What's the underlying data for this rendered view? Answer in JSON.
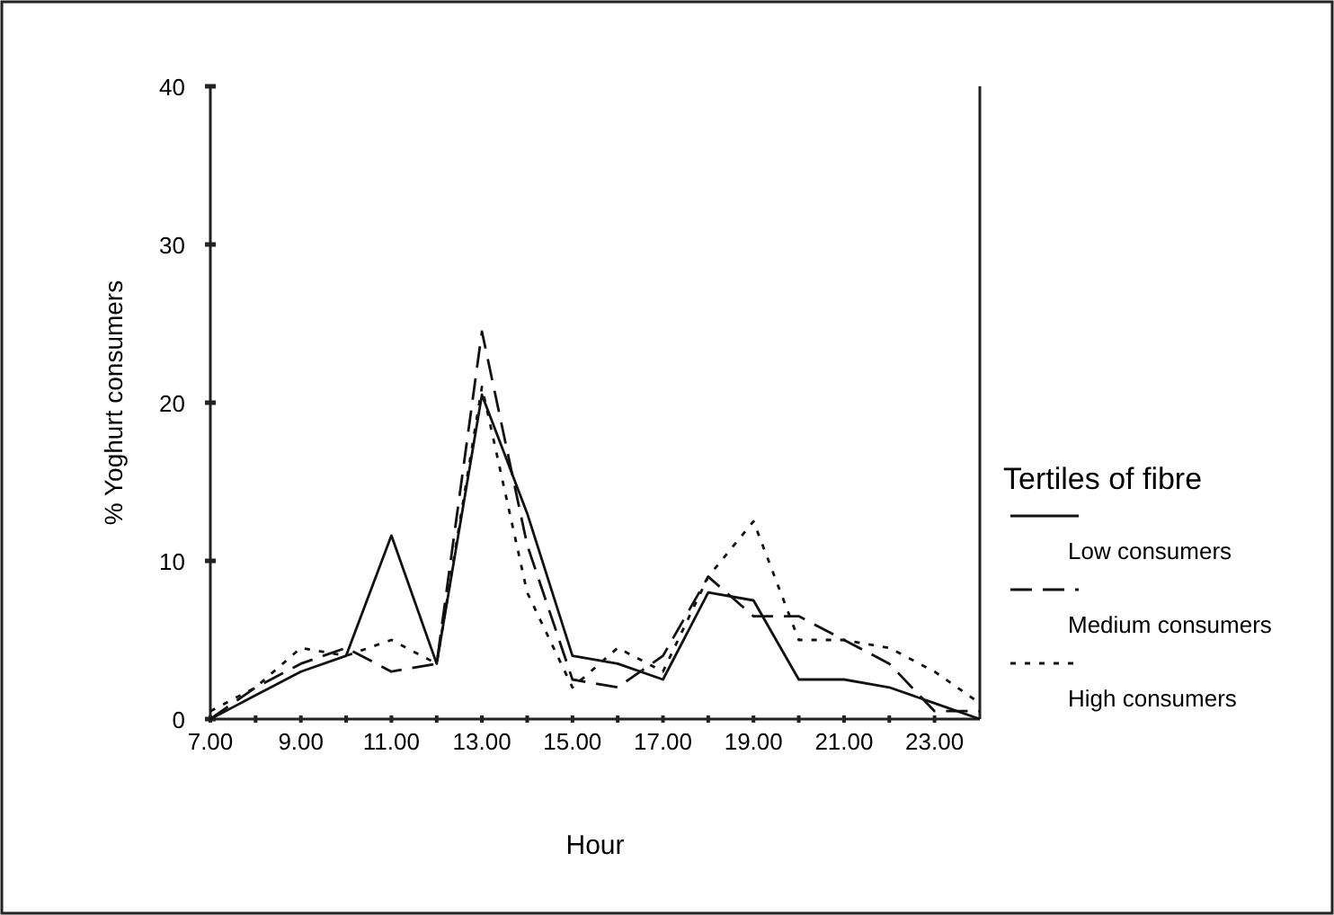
{
  "chart_data": {
    "type": "line",
    "xlabel": "Hour",
    "ylabel": "% Yoghurt consumers",
    "legend_title": "Tertiles of fibre",
    "legend": "right",
    "grid": false,
    "xlim": [
      7,
      24
    ],
    "ylim": [
      0,
      40
    ],
    "yticks": [
      0,
      10,
      20,
      30,
      40
    ],
    "xticks": [
      {
        "value": 7,
        "label": "7.00"
      },
      {
        "value": 8,
        "label": null
      },
      {
        "value": 9,
        "label": "9.00"
      },
      {
        "value": 10,
        "label": null
      },
      {
        "value": 11,
        "label": "11.00"
      },
      {
        "value": 12,
        "label": null
      },
      {
        "value": 13,
        "label": "13.00"
      },
      {
        "value": 14,
        "label": null
      },
      {
        "value": 15,
        "label": "15.00"
      },
      {
        "value": 16,
        "label": null
      },
      {
        "value": 17,
        "label": "17.00"
      },
      {
        "value": 18,
        "label": null
      },
      {
        "value": 19,
        "label": "19.00"
      },
      {
        "value": 20,
        "label": null
      },
      {
        "value": 21,
        "label": "21.00"
      },
      {
        "value": 22,
        "label": null
      },
      {
        "value": 23,
        "label": "23.00"
      }
    ],
    "x": [
      7,
      8,
      9,
      10,
      11,
      12,
      13,
      14,
      15,
      16,
      17,
      18,
      19,
      20,
      21,
      22,
      23,
      24
    ],
    "series": [
      {
        "name": "Low consumers",
        "color": "#111111",
        "line_style": "solid",
        "values": [
          0,
          1.5,
          3,
          4,
          11.6,
          3.5,
          20.5,
          13,
          4,
          3.5,
          2.5,
          8,
          7.5,
          2.5,
          2.5,
          2,
          1,
          0
        ]
      },
      {
        "name": "Medium consumers",
        "color": "#111111",
        "line_style": "dashed",
        "values": [
          0,
          2,
          3.5,
          4.5,
          3,
          3.5,
          24.5,
          11,
          2.5,
          2,
          4,
          9,
          6.5,
          6.5,
          5,
          3.5,
          0.5,
          0.5
        ]
      },
      {
        "name": "High consumers",
        "color": "#111111",
        "line_style": "dotted",
        "values": [
          0.5,
          2,
          4.5,
          4,
          5,
          3.5,
          21,
          8,
          2,
          4.5,
          3,
          9,
          12.5,
          5,
          5,
          4.5,
          3,
          1
        ]
      }
    ]
  }
}
